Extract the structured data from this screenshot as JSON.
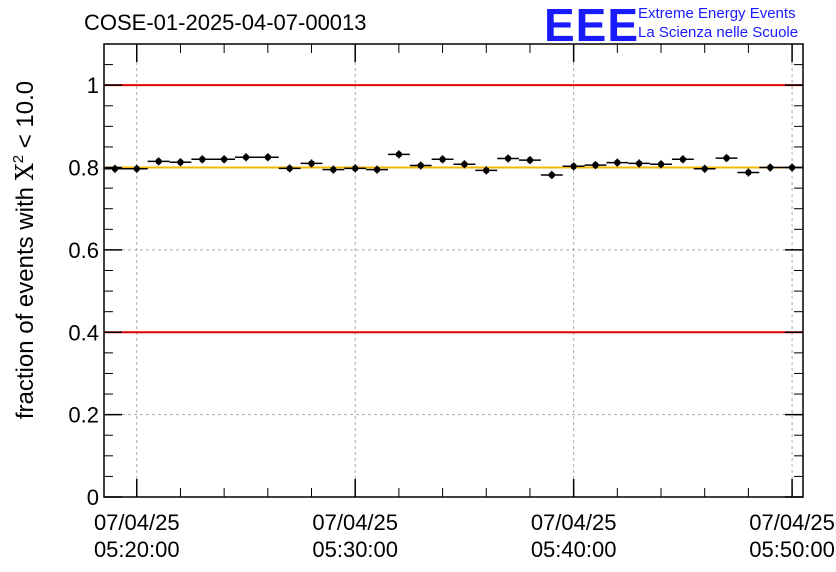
{
  "title": "COSE-01-2025-04-07-00013",
  "logo": {
    "mark": "EEE",
    "line1": "Extreme Energy Events",
    "line2": "La Scienza nelle Scuole"
  },
  "chart_data": {
    "type": "scatter",
    "title": "COSE-01-2025-04-07-00013",
    "ylabel_prefix": "fraction of events with ",
    "ylabel_chi": "X",
    "ylabel_sup": "2",
    "ylabel_suffix": " < 10.0",
    "ylim": [
      0,
      1.1
    ],
    "yticks": [
      "0",
      "0.2",
      "0.4",
      "0.6",
      "0.8",
      "1"
    ],
    "xlim_minutes": [
      18.5,
      50.5
    ],
    "xticks": [
      {
        "minute": 20,
        "date": "07/04/25",
        "time": "05:20:00"
      },
      {
        "minute": 30,
        "date": "07/04/25",
        "time": "05:30:00"
      },
      {
        "minute": 40,
        "date": "07/04/25",
        "time": "05:40:00"
      },
      {
        "minute": 50,
        "date": "07/04/25",
        "time": "05:50:00"
      }
    ],
    "grid": true,
    "reference_lines": [
      {
        "y": 1.0,
        "color": "#e00000"
      },
      {
        "y": 0.4,
        "color": "#e00000"
      },
      {
        "y": 0.8,
        "color": "#f5b800"
      }
    ],
    "series": [
      {
        "name": "fraction",
        "x_minutes": [
          19.0,
          20.0,
          21.0,
          22.0,
          23.0,
          24.0,
          25.0,
          26.0,
          27.0,
          28.0,
          29.0,
          30.0,
          31.0,
          32.0,
          33.0,
          34.0,
          35.0,
          36.0,
          37.0,
          38.0,
          39.0,
          40.0,
          41.0,
          42.0,
          43.0,
          44.0,
          45.0,
          46.0,
          47.0,
          48.0,
          49.0,
          50.0
        ],
        "y": [
          0.797,
          0.797,
          0.815,
          0.813,
          0.82,
          0.82,
          0.825,
          0.825,
          0.798,
          0.81,
          0.795,
          0.798,
          0.795,
          0.832,
          0.805,
          0.82,
          0.808,
          0.793,
          0.822,
          0.818,
          0.782,
          0.803,
          0.806,
          0.812,
          0.81,
          0.808,
          0.82,
          0.797,
          0.823,
          0.788,
          0.8,
          0.8
        ]
      }
    ]
  }
}
